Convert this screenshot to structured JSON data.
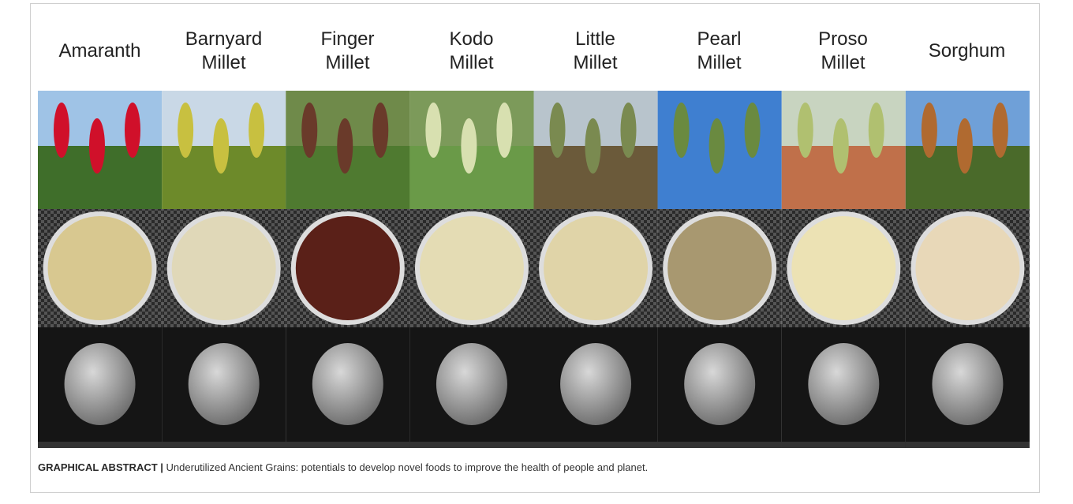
{
  "columns": [
    {
      "label": "Amaranth"
    },
    {
      "label": "Barnyard Millet"
    },
    {
      "label": "Finger Millet"
    },
    {
      "label": "Kodo Millet"
    },
    {
      "label": "Little Millet"
    },
    {
      "label": "Pearl Millet"
    },
    {
      "label": "Proso Millet"
    },
    {
      "label": "Sorghum"
    }
  ],
  "caption": {
    "label": "GRAPHICAL ABSTRACT |",
    "text": "Underutilized Ancient Grains: potentials to develop novel foods to improve the health of people and planet."
  }
}
